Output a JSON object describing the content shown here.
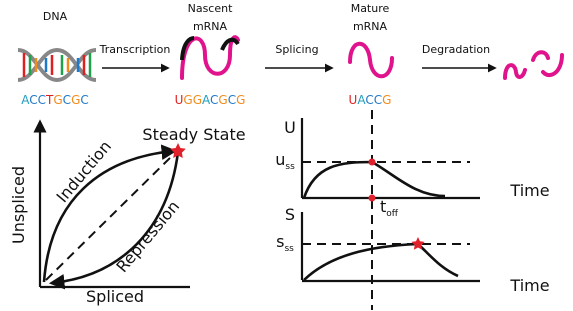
{
  "stages": {
    "dna": "DNA",
    "transcription": "Transcription",
    "nascent": [
      "Nascent",
      "mRNA"
    ],
    "splicing": "Splicing",
    "mature": [
      "Mature",
      "mRNA"
    ],
    "degradation": "Degradation"
  },
  "sequences": {
    "dna": [
      "A",
      "C",
      "C",
      "T",
      "G",
      "C",
      "G",
      "C"
    ],
    "nascent": [
      "U",
      "G",
      "G",
      "A",
      "C",
      "G",
      "C",
      "G"
    ],
    "mature": [
      "U",
      "A",
      "C",
      "C",
      "G"
    ]
  },
  "phase": {
    "steady_state": "Steady State",
    "induction": "Induction",
    "repression": "Repression",
    "y_label": "Unspliced",
    "x_label": "Spliced"
  },
  "unspliced_plot": {
    "y_label": "U",
    "level": {
      "main": "u",
      "sub": "ss"
    },
    "switch": {
      "main": "t",
      "sub": "off"
    },
    "x_label": "Time"
  },
  "spliced_plot": {
    "y_label": "S",
    "level": {
      "main": "s",
      "sub": "ss"
    },
    "x_label": "Time"
  }
}
